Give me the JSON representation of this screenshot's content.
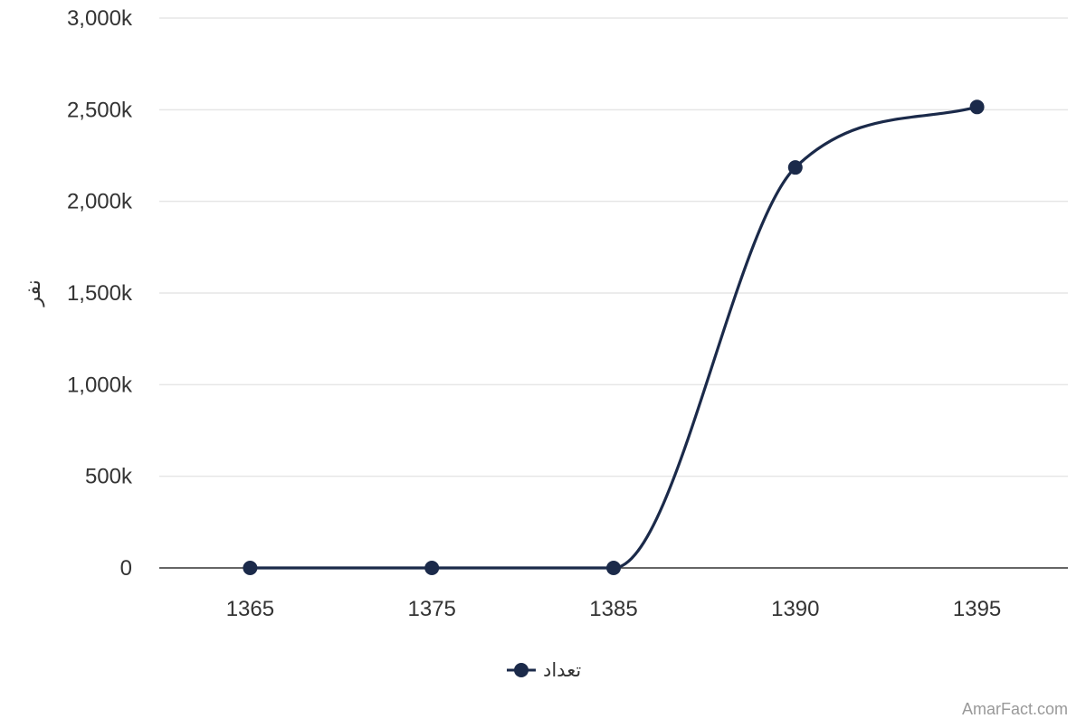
{
  "chart_data": {
    "type": "line",
    "title": "",
    "xlabel": "",
    "ylabel": "نفر",
    "categories": [
      "1365",
      "1375",
      "1385",
      "1390",
      "1395"
    ],
    "series": [
      {
        "name": "تعداد",
        "color": "#1b2a4a",
        "values": [
          0,
          0,
          0,
          2185000,
          2515000
        ]
      }
    ],
    "ylim": [
      0,
      3000000
    ],
    "yticks": [
      {
        "value": 0,
        "label": "0"
      },
      {
        "value": 500000,
        "label": "500k"
      },
      {
        "value": 1000000,
        "label": "1,000k"
      },
      {
        "value": 1500000,
        "label": "1,500k"
      },
      {
        "value": 2000000,
        "label": "2,000k"
      },
      {
        "value": 2500000,
        "label": "2,500k"
      },
      {
        "value": 3000000,
        "label": "3,000k"
      }
    ],
    "grid": true,
    "smooth": true,
    "legend_position": "bottom-center"
  },
  "credit": "AmarFact.com"
}
